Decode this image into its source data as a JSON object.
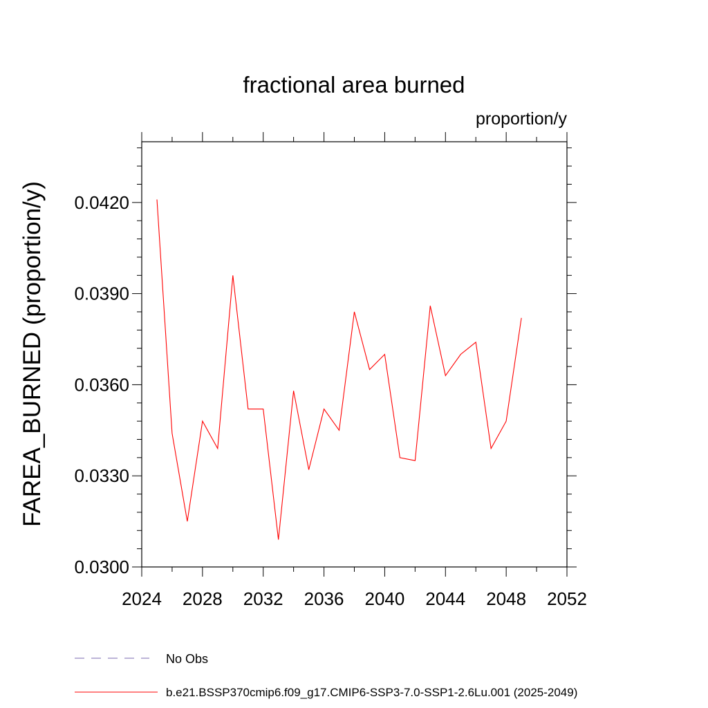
{
  "chart_data": {
    "type": "line",
    "title": "fractional area burned",
    "units_label": "proportion/y",
    "ylabel": "FAREA_BURNED  (proportion/y)",
    "xlabel": "",
    "xlim": [
      2024,
      2052
    ],
    "ylim": [
      0.03,
      0.044
    ],
    "x_ticks": [
      2024,
      2028,
      2032,
      2036,
      2040,
      2044,
      2048,
      2052
    ],
    "y_ticks": [
      0.03,
      0.033,
      0.036,
      0.039,
      0.042
    ],
    "x_tick_labels": [
      "2024",
      "2028",
      "2032",
      "2036",
      "2040",
      "2044",
      "2048",
      "2052"
    ],
    "y_tick_labels": [
      "0.0300",
      "0.0330",
      "0.0360",
      "0.0390",
      "0.0420"
    ],
    "grid": false,
    "legend_position": "bottom",
    "legend": [
      {
        "label": "No Obs",
        "color": "#7b68b0",
        "style": "dashed"
      },
      {
        "label": "b.e21.BSSP370cmip6.f09_g17.CMIP6-SSP3-7.0-SSP1-2.6Lu.001 (2025-2049)",
        "color": "#ff0000",
        "style": "solid"
      }
    ],
    "series": [
      {
        "name": "b.e21.BSSP370cmip6.f09_g17.CMIP6-SSP3-7.0-SSP1-2.6Lu.001 (2025-2049)",
        "color": "#ff0000",
        "x": [
          2025,
          2026,
          2027,
          2028,
          2029,
          2030,
          2031,
          2032,
          2033,
          2034,
          2035,
          2036,
          2037,
          2038,
          2039,
          2040,
          2041,
          2042,
          2043,
          2044,
          2045,
          2046,
          2047,
          2048,
          2049
        ],
        "y": [
          0.0421,
          0.0344,
          0.0315,
          0.0348,
          0.0339,
          0.0396,
          0.0352,
          0.0352,
          0.0309,
          0.0358,
          0.0332,
          0.0352,
          0.0345,
          0.0384,
          0.0365,
          0.037,
          0.0336,
          0.0335,
          0.0386,
          0.0363,
          0.037,
          0.0374,
          0.0339,
          0.0348,
          0.0382
        ]
      }
    ]
  }
}
